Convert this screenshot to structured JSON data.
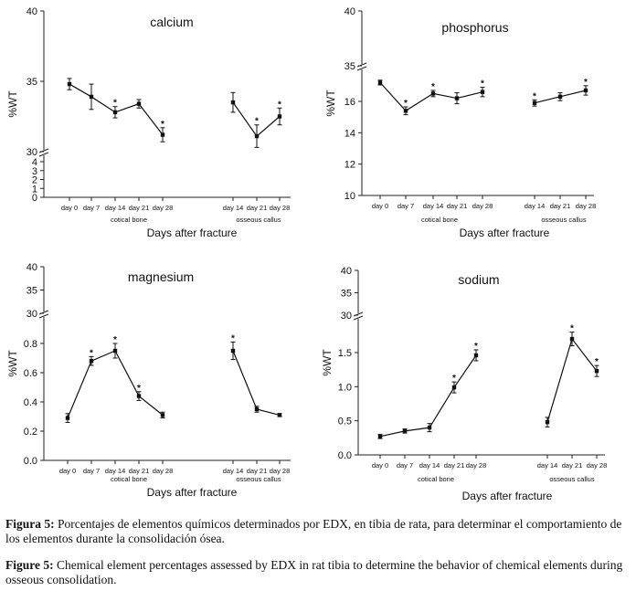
{
  "chart_data": [
    {
      "type": "line",
      "title": "calcium",
      "ylabel": "%WT",
      "xlabel": "Days after fracture",
      "groups": [
        "cotical bone",
        "osseous callus"
      ],
      "categories": [
        "day 0",
        "day 7",
        "day 14",
        "day 21",
        "day 28",
        "day 14",
        "day 21",
        "day 28"
      ],
      "upper_ticks": [
        "30",
        "35",
        "40"
      ],
      "lower_ticks": [
        "0",
        "1",
        "2",
        "3",
        "4"
      ],
      "series": [
        {
          "name": "cortical bone",
          "x": [
            0,
            1,
            2,
            3,
            4
          ],
          "y": [
            34.8,
            33.9,
            32.8,
            33.4,
            31.2
          ],
          "err": [
            0.4,
            0.9,
            0.4,
            0.3,
            0.5
          ],
          "marks": [
            "",
            "",
            "*",
            "",
            "*"
          ]
        },
        {
          "name": "osseous callus",
          "x": [
            5,
            6,
            7
          ],
          "y": [
            33.5,
            31.1,
            32.5
          ],
          "err": [
            0.7,
            0.8,
            0.6
          ],
          "marks": [
            "",
            "*",
            "*"
          ]
        }
      ]
    },
    {
      "type": "line",
      "title": "phosphorus",
      "ylabel": "%WT",
      "xlabel": "Days after fracture",
      "groups": [
        "cotical bone",
        "osseous callus"
      ],
      "categories": [
        "day 0",
        "day 7",
        "day 14",
        "day 21",
        "day 28",
        "day 14",
        "day 21",
        "day 28"
      ],
      "upper_ticks": [
        "35",
        "40"
      ],
      "lower_ticks": [
        "10",
        "12",
        "14",
        "16"
      ],
      "series": [
        {
          "name": "cortical bone",
          "x": [
            0,
            1,
            2,
            3,
            4
          ],
          "y": [
            17.2,
            15.4,
            16.5,
            16.2,
            16.6
          ],
          "err": [
            0.15,
            0.25,
            0.2,
            0.35,
            0.3
          ],
          "marks": [
            "",
            "*",
            "*",
            "",
            "*"
          ]
        },
        {
          "name": "osseous callus",
          "x": [
            5,
            6,
            7
          ],
          "y": [
            15.9,
            16.3,
            16.7
          ],
          "err": [
            0.2,
            0.25,
            0.3
          ],
          "marks": [
            "*",
            "",
            "*"
          ]
        }
      ]
    },
    {
      "type": "line",
      "title": "magnesium",
      "ylabel": "%WT",
      "xlabel": "Days after fracture",
      "groups": [
        "cotical bone",
        "osseous callus"
      ],
      "categories": [
        "day 0",
        "day 7",
        "day 14",
        "day 21",
        "day 28",
        "day 14",
        "day 21",
        "day 28"
      ],
      "upper_ticks": [
        "30",
        "35",
        "40"
      ],
      "lower_ticks": [
        "0.0",
        "0.2",
        "0.4",
        "0.6",
        "0.8"
      ],
      "series": [
        {
          "name": "cortical bone",
          "x": [
            0,
            1,
            2,
            3,
            4
          ],
          "y": [
            0.29,
            0.68,
            0.75,
            0.44,
            0.31
          ],
          "err": [
            0.03,
            0.03,
            0.05,
            0.03,
            0.02
          ],
          "marks": [
            "",
            "*",
            "*",
            "*",
            ""
          ]
        },
        {
          "name": "osseous callus",
          "x": [
            5,
            6,
            7
          ],
          "y": [
            0.75,
            0.35,
            0.31
          ],
          "err": [
            0.06,
            0.02,
            0.01
          ],
          "marks": [
            "*",
            "",
            ""
          ]
        }
      ]
    },
    {
      "type": "line",
      "title": "sodium",
      "ylabel": "%WT",
      "xlabel": "Days after fracture",
      "groups": [
        "cotical bone",
        "osseous callus"
      ],
      "categories": [
        "day 0",
        "day 7",
        "day 14",
        "day 21",
        "day 28",
        "day 14",
        "day 21",
        "day 28"
      ],
      "upper_ticks": [
        "30",
        "35",
        "40"
      ],
      "lower_ticks": [
        "0.0",
        "0.5",
        "1.0",
        "1.5"
      ],
      "series": [
        {
          "name": "cortical bone",
          "x": [
            0,
            1,
            2,
            3,
            4
          ],
          "y": [
            0.27,
            0.35,
            0.4,
            0.99,
            1.46
          ],
          "err": [
            0.03,
            0.03,
            0.06,
            0.08,
            0.08
          ],
          "marks": [
            "",
            "",
            "",
            "*",
            "*"
          ]
        },
        {
          "name": "osseous callus",
          "x": [
            5,
            6,
            7
          ],
          "y": [
            0.48,
            1.7,
            1.23
          ],
          "err": [
            0.07,
            0.1,
            0.08
          ],
          "marks": [
            "",
            "*",
            "*"
          ]
        }
      ]
    }
  ],
  "caption_es": {
    "label": "Figura 5:",
    "text": "Porcentajes de elementos químicos determinados por EDX, en tibia de rata, para determinar el comportamiento de los elementos durante la consolidación ósea."
  },
  "caption_en": {
    "label": "Figure 5:",
    "text": "Chemical element percentages assessed by EDX in rat tibia to determine the behavior of chemical elements during osseous consolidation."
  }
}
